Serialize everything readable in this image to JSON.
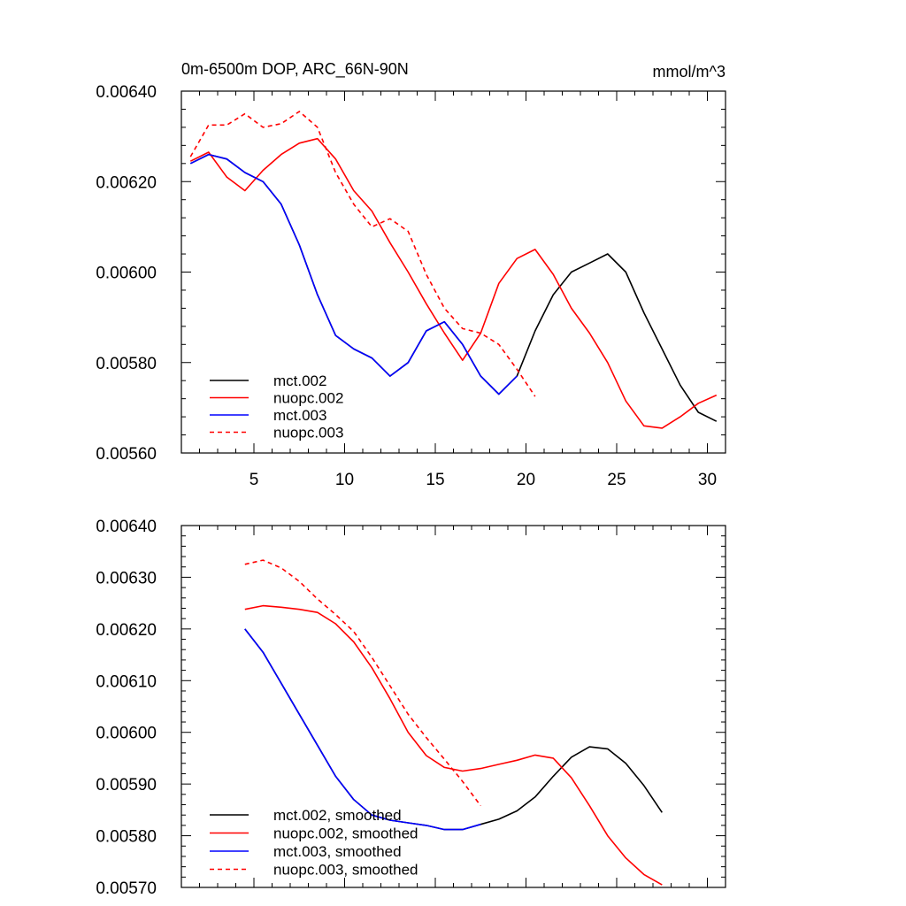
{
  "chart_data": [
    {
      "type": "line",
      "title_left": "0m-6500m DOP, ARC_66N-90N",
      "title_right": "mmol/m^3",
      "xlim": [
        1,
        31
      ],
      "ylim": [
        0.0056,
        0.0064
      ],
      "x_ticks": [
        5,
        10,
        15,
        20,
        25,
        30
      ],
      "x_tick_labels": [
        "5",
        "10",
        "15",
        "20",
        "25",
        "30"
      ],
      "y_ticks": [
        0.0056,
        0.0058,
        0.006,
        0.0062,
        0.0064
      ],
      "y_tick_labels": [
        "0.00560",
        "0.00580",
        "0.00600",
        "0.00620",
        "0.00640"
      ],
      "legend_position": "bottom-left",
      "series": [
        {
          "name": "mct.002",
          "color": "#000000",
          "dash": "solid",
          "x": [
            1.5,
            2.5,
            3.5,
            4.5,
            5.5,
            6.5,
            7.5,
            8.5,
            9.5,
            10.5,
            11.5,
            12.5,
            13.5,
            14.5,
            15.5,
            16.5,
            17.5,
            18.5,
            19.5,
            20.5,
            21.5,
            22.5,
            23.5,
            24.5,
            25.5,
            26.5,
            27.5,
            28.5,
            29.5,
            30.5
          ],
          "y": [
            0.00624,
            0.00626,
            0.00625,
            0.00622,
            0.0062,
            0.00615,
            0.00606,
            0.00595,
            0.00586,
            0.00583,
            0.00581,
            0.00577,
            0.0058,
            0.00587,
            0.00589,
            0.00584,
            0.00577,
            0.00573,
            0.00577,
            0.00587,
            0.00595,
            0.006,
            0.00602,
            0.00604,
            0.006,
            0.00591,
            0.00583,
            0.00575,
            0.00569,
            0.00567
          ]
        },
        {
          "name": "nuopc.002",
          "color": "#ff0000",
          "dash": "solid",
          "x": [
            1.5,
            2.5,
            3.5,
            4.5,
            5.5,
            6.5,
            7.5,
            8.5,
            9.5,
            10.5,
            11.5,
            12.5,
            13.5,
            14.5,
            15.5,
            16.5,
            17.5,
            18.5,
            19.5,
            20.5,
            21.5,
            22.5,
            23.5,
            24.5,
            25.5,
            26.5,
            27.5,
            28.5,
            29.5,
            30.5
          ],
          "y": [
            0.006245,
            0.006265,
            0.00621,
            0.00618,
            0.006225,
            0.00626,
            0.006285,
            0.006295,
            0.00625,
            0.00618,
            0.006135,
            0.006065,
            0.006,
            0.00593,
            0.005865,
            0.005805,
            0.005865,
            0.005975,
            0.00603,
            0.00605,
            0.005995,
            0.00592,
            0.005865,
            0.0058,
            0.005715,
            0.00566,
            0.005655,
            0.00568,
            0.00571,
            0.005728
          ]
        },
        {
          "name": "mct.003",
          "color": "#0000ff",
          "dash": "solid",
          "x": [
            1.5,
            2.5,
            3.5,
            4.5,
            5.5,
            6.5,
            7.5,
            8.5,
            9.5,
            10.5,
            11.5,
            12.5,
            13.5,
            14.5,
            15.5,
            16.5,
            17.5,
            18.5,
            19.5
          ],
          "y": [
            0.00624,
            0.00626,
            0.00625,
            0.00622,
            0.0062,
            0.00615,
            0.00606,
            0.00595,
            0.00586,
            0.00583,
            0.00581,
            0.00577,
            0.0058,
            0.00587,
            0.00589,
            0.00584,
            0.00577,
            0.00573,
            0.00577
          ]
        },
        {
          "name": "nuopc.003",
          "color": "#ff0000",
          "dash": "dashed",
          "x": [
            1.5,
            2.5,
            3.5,
            4.5,
            5.5,
            6.5,
            7.5,
            8.5,
            9.5,
            10.5,
            11.5,
            12.5,
            13.5,
            14.5,
            15.5,
            16.5,
            17.5,
            18.5,
            19.5,
            20.5
          ],
          "y": [
            0.006255,
            0.006325,
            0.006325,
            0.00635,
            0.00632,
            0.006328,
            0.006355,
            0.00632,
            0.00622,
            0.00615,
            0.0061,
            0.006118,
            0.00609,
            0.005995,
            0.00592,
            0.005875,
            0.005865,
            0.00584,
            0.005785,
            0.005725
          ]
        }
      ]
    },
    {
      "type": "line",
      "xlim": [
        1,
        31
      ],
      "ylim": [
        0.0057,
        0.0064
      ],
      "x_ticks": [
        5,
        10,
        15,
        20,
        25,
        30
      ],
      "x_tick_labels": [],
      "y_ticks": [
        0.0057,
        0.0058,
        0.0059,
        0.006,
        0.0061,
        0.0062,
        0.0063,
        0.0064
      ],
      "y_tick_labels": [
        "0.00570",
        "0.00580",
        "0.00590",
        "0.00600",
        "0.00610",
        "0.00620",
        "0.00630",
        "0.00640"
      ],
      "legend_position": "bottom-left",
      "series": [
        {
          "name": "mct.002, smoothed",
          "color": "#000000",
          "dash": "solid",
          "x": [
            4.5,
            5.5,
            6.5,
            7.5,
            8.5,
            9.5,
            10.5,
            11.5,
            12.5,
            13.5,
            14.5,
            15.5,
            16.5,
            17.5,
            18.5,
            19.5,
            20.5,
            21.5,
            22.5,
            23.5,
            24.5,
            25.5,
            26.5,
            27.5
          ],
          "y": [
            0.0062,
            0.006155,
            0.006095,
            0.006035,
            0.005975,
            0.005915,
            0.00587,
            0.00584,
            0.00583,
            0.005825,
            0.00582,
            0.005812,
            0.005812,
            0.005822,
            0.005832,
            0.005848,
            0.005875,
            0.005915,
            0.005952,
            0.005972,
            0.005968,
            0.00594,
            0.005897,
            0.005845
          ]
        },
        {
          "name": "nuopc.002, smoothed",
          "color": "#ff0000",
          "dash": "solid",
          "x": [
            4.5,
            5.5,
            6.5,
            7.5,
            8.5,
            9.5,
            10.5,
            11.5,
            12.5,
            13.5,
            14.5,
            15.5,
            16.5,
            17.5,
            18.5,
            19.5,
            20.5,
            21.5,
            22.5,
            23.5,
            24.5,
            25.5,
            26.5,
            27.5
          ],
          "y": [
            0.006238,
            0.006245,
            0.006242,
            0.006238,
            0.006232,
            0.00621,
            0.006175,
            0.006125,
            0.006065,
            0.006,
            0.005955,
            0.005932,
            0.005925,
            0.00593,
            0.005938,
            0.005946,
            0.005956,
            0.00595,
            0.005912,
            0.005858,
            0.0058,
            0.005757,
            0.005725,
            0.005705
          ]
        },
        {
          "name": "mct.003, smoothed",
          "color": "#0000ff",
          "dash": "solid",
          "x": [
            4.5,
            5.5,
            6.5,
            7.5,
            8.5,
            9.5,
            10.5,
            11.5,
            12.5,
            13.5,
            14.5,
            15.5,
            16.5,
            17.5
          ],
          "y": [
            0.0062,
            0.006155,
            0.006095,
            0.006035,
            0.005975,
            0.005915,
            0.00587,
            0.00584,
            0.00583,
            0.005825,
            0.00582,
            0.005812,
            0.005812,
            0.005822
          ]
        },
        {
          "name": "nuopc.003, smoothed",
          "color": "#ff0000",
          "dash": "dashed",
          "x": [
            4.5,
            5.5,
            6.5,
            7.5,
            8.5,
            9.5,
            10.5,
            11.5,
            12.5,
            13.5,
            14.5,
            15.5,
            16.5,
            17.5
          ],
          "y": [
            0.006325,
            0.006333,
            0.006318,
            0.006292,
            0.006258,
            0.006228,
            0.006195,
            0.006145,
            0.00609,
            0.006035,
            0.00599,
            0.005948,
            0.005905,
            0.005858
          ]
        }
      ]
    }
  ]
}
